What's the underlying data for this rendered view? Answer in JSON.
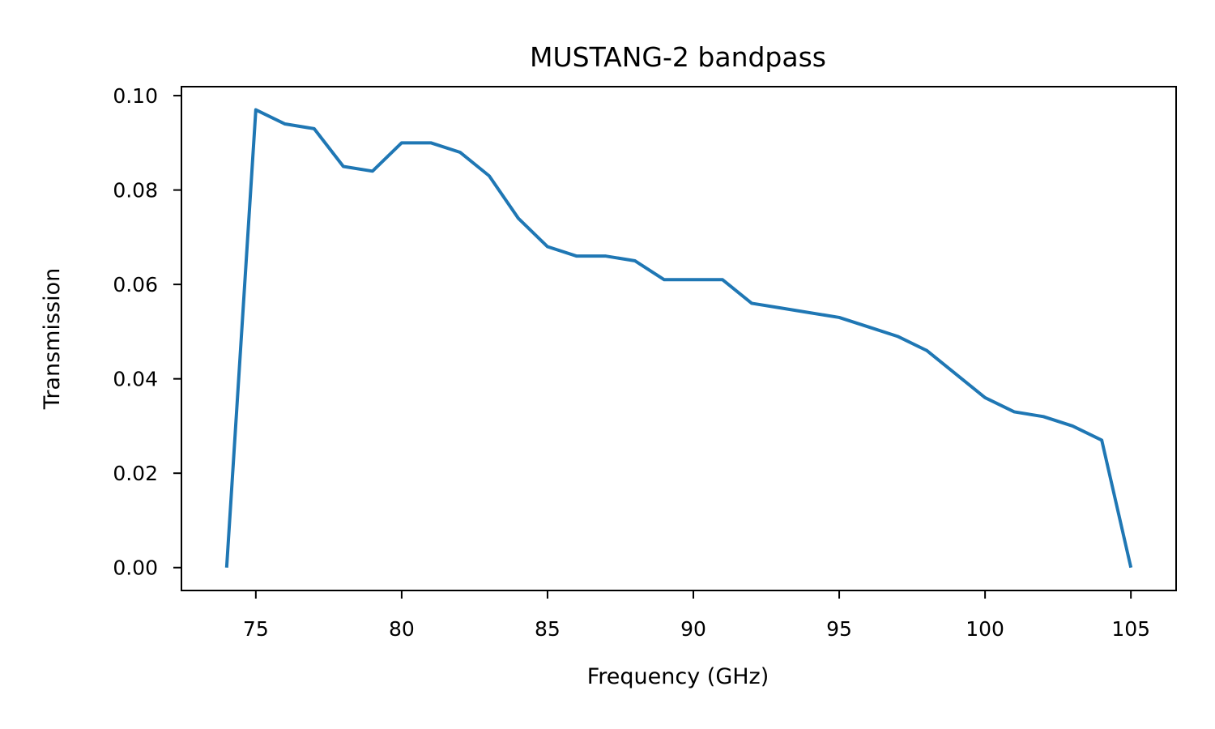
{
  "chart_data": {
    "type": "line",
    "title": "MUSTANG-2 bandpass",
    "xlabel": "Frequency (GHz)",
    "ylabel": "Transmission",
    "xlim": [
      72.45,
      106.55
    ],
    "ylim": [
      -0.00485,
      0.1019
    ],
    "x_ticks": [
      75,
      80,
      85,
      90,
      95,
      100,
      105
    ],
    "x_tick_labels": [
      "75",
      "80",
      "85",
      "90",
      "95",
      "100",
      "105"
    ],
    "y_ticks": [
      0.0,
      0.02,
      0.04,
      0.06,
      0.08,
      0.1
    ],
    "y_tick_labels": [
      "0.00",
      "0.02",
      "0.04",
      "0.06",
      "0.08",
      "0.10"
    ],
    "grid": false,
    "series": [
      {
        "color": "#1f77b4",
        "x": [
          74,
          75,
          76,
          77,
          78,
          79,
          80,
          81,
          82,
          83,
          84,
          85,
          86,
          87,
          88,
          89,
          90,
          91,
          92,
          93,
          94,
          95,
          96,
          97,
          98,
          99,
          100,
          101,
          102,
          103,
          104,
          105
        ],
        "y": [
          0.0,
          0.097,
          0.094,
          0.093,
          0.085,
          0.084,
          0.09,
          0.09,
          0.088,
          0.083,
          0.074,
          0.068,
          0.066,
          0.066,
          0.065,
          0.061,
          0.061,
          0.061,
          0.056,
          0.055,
          0.054,
          0.053,
          0.051,
          0.049,
          0.046,
          0.041,
          0.036,
          0.033,
          0.032,
          0.03,
          0.027,
          0.0
        ]
      }
    ]
  }
}
